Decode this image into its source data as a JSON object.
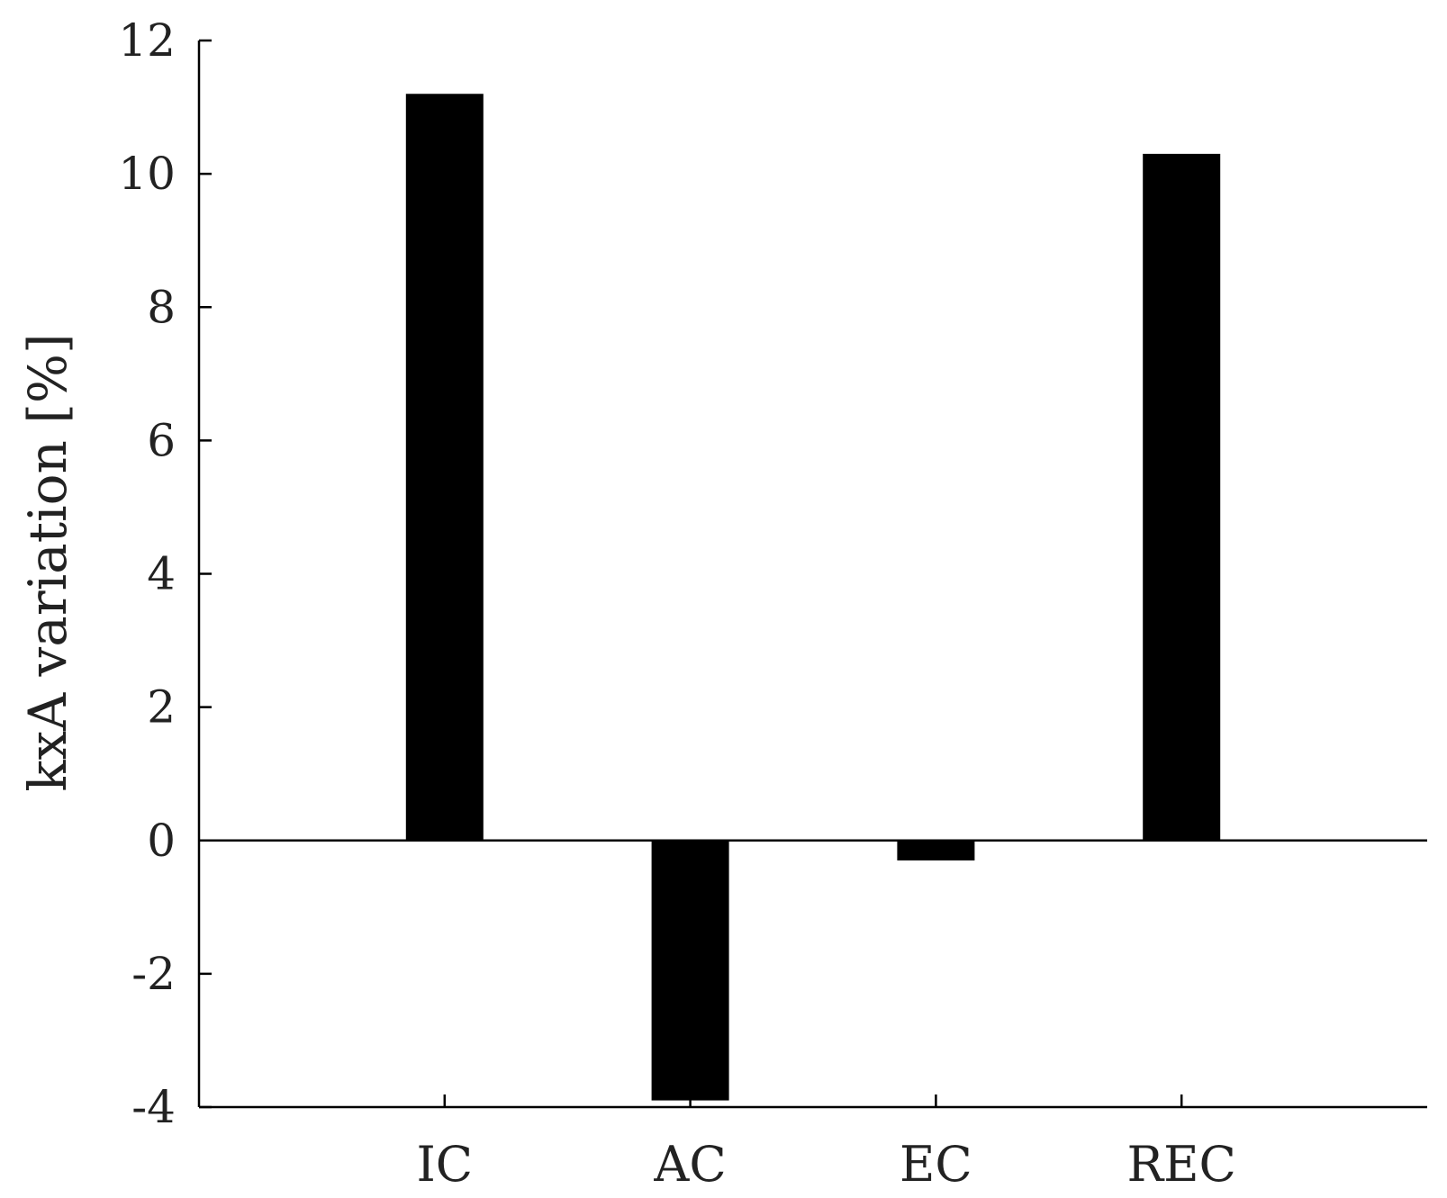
{
  "chart_data": {
    "type": "bar",
    "categories": [
      "IC",
      "AC",
      "EC",
      "REC"
    ],
    "values": [
      11.2,
      -3.9,
      -0.3,
      10.3
    ],
    "ylabel": "kxA variation [%]",
    "ylim": [
      -4,
      12
    ],
    "yticks": [
      -4,
      -2,
      0,
      2,
      4,
      6,
      8,
      10,
      12
    ],
    "xlim": [
      0,
      5
    ],
    "grid": false,
    "legend": "none",
    "bar_color": "#000000",
    "axis_color": "#000000"
  }
}
